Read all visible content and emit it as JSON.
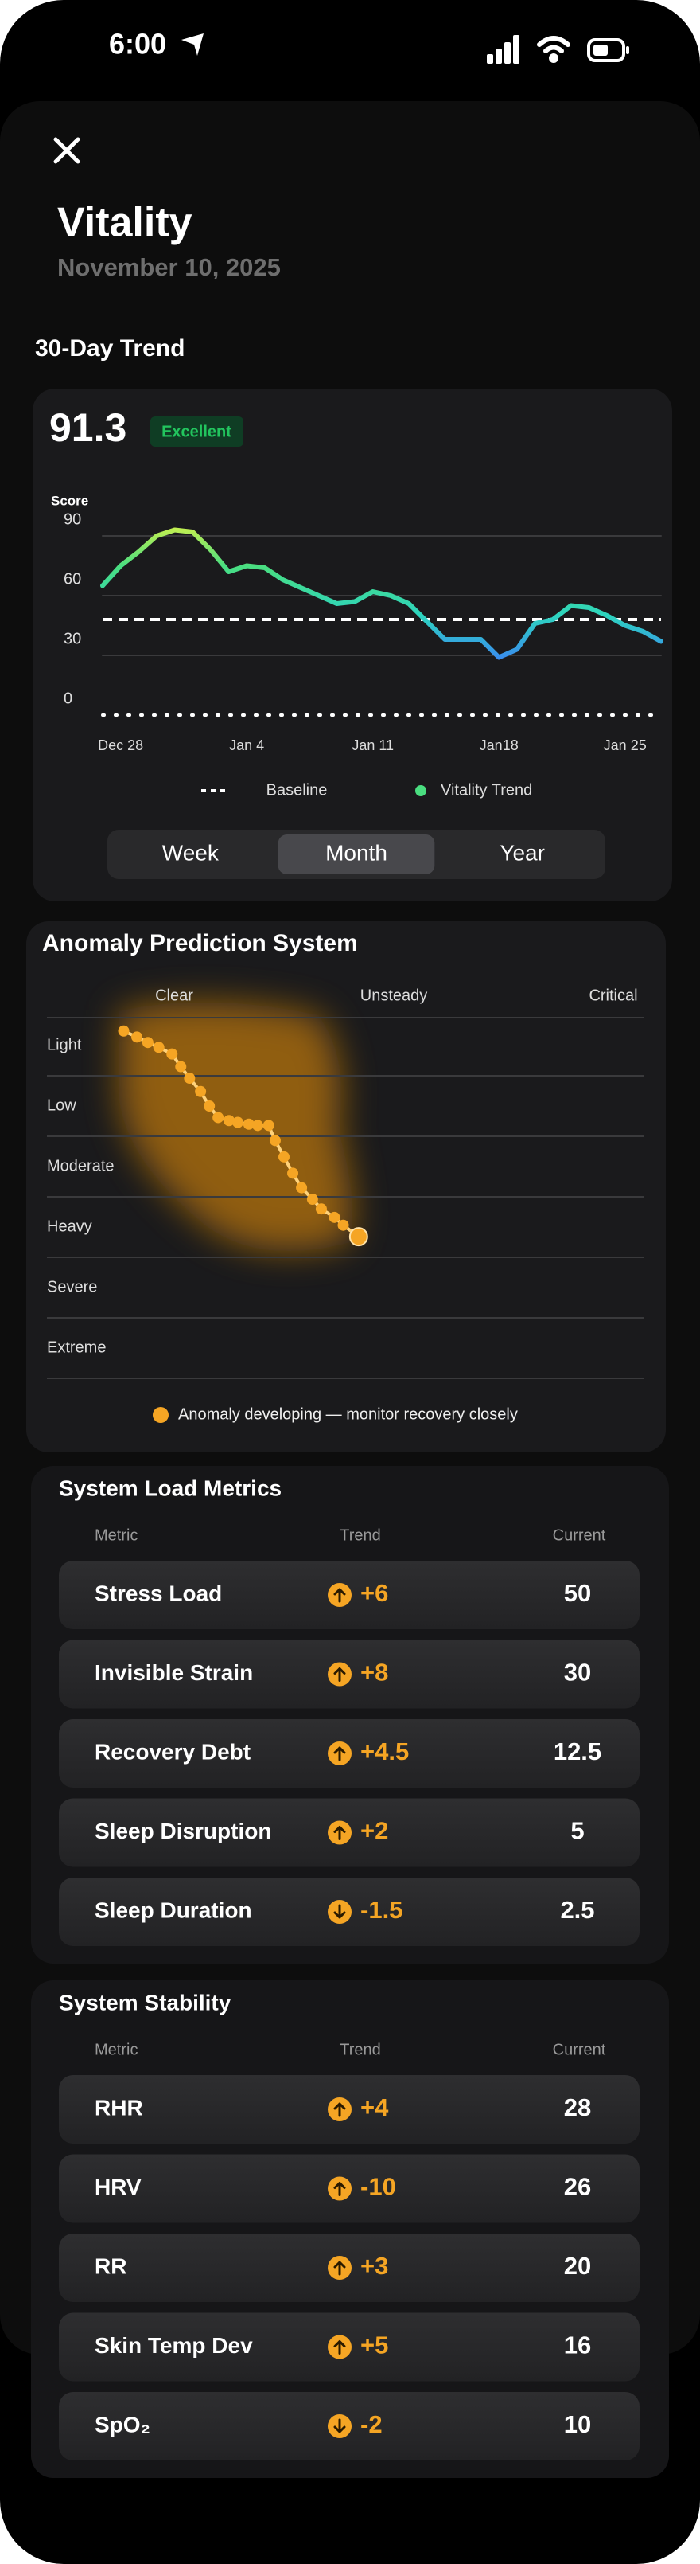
{
  "status_bar": {
    "time": "6:00"
  },
  "header": {
    "title": "Vitality",
    "date": "November 10, 2025"
  },
  "trend_section": {
    "heading": "30-Day Trend",
    "score": 91.3,
    "badge": "Excellent",
    "segments": [
      "Week",
      "Month",
      "Year"
    ],
    "selected_segment": 1
  },
  "chart_data": [
    {
      "type": "line",
      "y_label": "Score",
      "categories": [
        null,
        "Dec 28",
        null,
        null,
        null,
        null,
        null,
        null,
        "Jan 4",
        null,
        null,
        null,
        null,
        null,
        null,
        "Jan 11",
        null,
        null,
        null,
        null,
        null,
        null,
        "Jan18",
        null,
        null,
        null,
        null,
        null,
        null,
        "Jan 25",
        null,
        null
      ],
      "series": [
        {
          "name": "Vitality Trend",
          "color": "#4ade80",
          "gradient": [
            "#e8f542",
            "#4ade80",
            "#2dd4bf",
            "#3b82f6",
            "#3b82f6"
          ],
          "values": [
            65,
            75,
            82,
            90,
            93,
            92,
            83,
            72,
            75,
            74,
            68,
            64,
            60,
            56,
            57,
            62,
            60,
            56,
            47,
            38,
            38,
            38,
            29,
            33,
            46,
            48,
            55,
            54,
            50,
            45,
            42,
            37
          ]
        }
      ],
      "baseline": {
        "name": "Baseline",
        "value": 48,
        "color": "#ffffff"
      },
      "ylim": [
        0,
        100
      ],
      "yticks": [
        0,
        30,
        60,
        90
      ],
      "grid": true
    },
    {
      "type": "scatter",
      "title": "Anomaly Prediction System",
      "x_categories": [
        "Clear",
        "Unsteady",
        "Critical"
      ],
      "y_categories": [
        "Light",
        "Low",
        "Moderate",
        "Heavy",
        "Severe",
        "Extreme"
      ],
      "x": [
        -0.23,
        -0.17,
        -0.12,
        -0.07,
        -0.01,
        0.03,
        0.07,
        0.12,
        0.16,
        0.2,
        0.25,
        0.29,
        0.34,
        0.38,
        0.43,
        0.46,
        0.5,
        0.54,
        0.58,
        0.63,
        0.67,
        0.73,
        0.77,
        0.84
      ],
      "y": [
        -0.24,
        -0.14,
        -0.05,
        0.03,
        0.14,
        0.35,
        0.54,
        0.76,
        1.0,
        1.19,
        1.24,
        1.27,
        1.3,
        1.32,
        1.32,
        1.57,
        1.84,
        2.11,
        2.35,
        2.54,
        2.7,
        2.84,
        2.97,
        3.16
      ],
      "color": "#f5a524",
      "note": "Anomaly developing — monitor recovery closely"
    }
  ],
  "load_metrics": {
    "title": "System Load Metrics",
    "columns": [
      "Metric",
      "Trend",
      "Current"
    ],
    "rows": [
      {
        "metric": "Stress Load",
        "trend": "+6",
        "direction": "up",
        "current": "50"
      },
      {
        "metric": "Invisible Strain",
        "trend": "+8",
        "direction": "up",
        "current": "30"
      },
      {
        "metric": "Recovery Debt",
        "trend": "+4.5",
        "direction": "up",
        "current": "12.5"
      },
      {
        "metric": "Sleep Disruption",
        "trend": "+2",
        "direction": "up",
        "current": "5"
      },
      {
        "metric": "Sleep Duration",
        "trend": "-1.5",
        "direction": "down",
        "current": "2.5"
      }
    ]
  },
  "stability": {
    "title": "System Stability",
    "columns": [
      "Metric",
      "Trend",
      "Current"
    ],
    "rows": [
      {
        "metric": "RHR",
        "trend": "+4",
        "direction": "up",
        "current": "28"
      },
      {
        "metric": "HRV",
        "trend": "-10",
        "direction": "up",
        "current": "26"
      },
      {
        "metric": "RR",
        "trend": "+3",
        "direction": "up",
        "current": "20"
      },
      {
        "metric": "Skin Temp Dev",
        "trend": "+5",
        "direction": "up",
        "current": "16"
      },
      {
        "metric": "SpO₂",
        "trend": "-2",
        "direction": "down",
        "current": "10"
      }
    ]
  }
}
